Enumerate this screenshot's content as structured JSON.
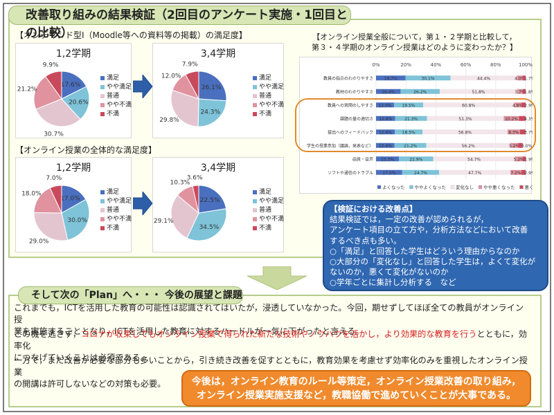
{
  "title": "改善取り組みの結果検証（2回目のアンケート実施・1回目との比較）",
  "section1_label": "【オンデマンド型Ⅰ（Moodle等への資料等の掲載）の満足度】",
  "section2_label": "【オンライン授業の全体的な満足度】",
  "legend_labels": [
    "満足",
    "やや満足",
    "普通",
    "やや不満",
    "不満"
  ],
  "colors": {
    "manzoku": "#4a6fbf",
    "yaya_manzoku": "#7ec3d8",
    "futsu": "#e3c5cf",
    "yaya_fuman": "#e0929e",
    "fuman": "#c9495c",
    "accent_green": "#d7e6b4",
    "blue_box": "#2f67b1",
    "orange": "#f08a2c"
  },
  "pies": [
    {
      "title": "1,2学期",
      "values": [
        17.6,
        20.6,
        30.7,
        21.2,
        9.9
      ],
      "labels": [
        "17.6%",
        "20.6%",
        "30.7%",
        "21.2%",
        "9.9%"
      ]
    },
    {
      "title": "3,4学期",
      "values": [
        26.1,
        24.3,
        29.8,
        12.0,
        7.9
      ],
      "labels": [
        "26.1%",
        "24.3%",
        "29.8%",
        "12.0%",
        "7.9%"
      ]
    },
    {
      "title": "1,2学期",
      "values": [
        17.0,
        30.0,
        29.0,
        18.0,
        7.0
      ],
      "labels": [
        "17.0%",
        "30.0%",
        "29.0%",
        "18.0%",
        "7.0%"
      ]
    },
    {
      "title": "3,4学期",
      "values": [
        22.5,
        34.5,
        29.1,
        10.3,
        3.6
      ],
      "labels": [
        "22.5%",
        "34.5%",
        "29.1%",
        "10.3%",
        "3.6%"
      ]
    }
  ],
  "bar_question_line1": "【オンライン授業全般について，第１・２学期と比較して，",
  "bar_question_line2": "第３・４学期のオンライン授業はどのように変わったか？】",
  "chart_data": {
    "type": "bar",
    "stacked": true,
    "orientation": "horizontal",
    "x_ticks": [
      "0%",
      "20%",
      "40%",
      "60%",
      "80%",
      "100%"
    ],
    "categories": [
      "教員の指示のわかりやすさ",
      "教材のわかりやすさ",
      "教員への質問のしやすさ",
      "課題の量の適切さ",
      "提出へのフィードバック",
      "学生の授業参加（議論，発表など）",
      "画質・音声",
      "ソフトや通信のトラブル"
    ],
    "series": [
      {
        "name": "よくなった",
        "values": [
          19.7,
          16.4,
          12.0,
          12.8,
          12.6,
          12.4,
          15.3,
          17.5
        ],
        "labels": [
          "19.7%",
          "16.4%",
          "12.0%",
          "12.8%",
          "12.6%",
          "12.4%",
          "15.3%",
          "17.5%"
        ]
      },
      {
        "name": "ややよくなった",
        "values": [
          30.1,
          26.2,
          19.5,
          21.3,
          18.5,
          21.2,
          22.9,
          24.7
        ],
        "labels": [
          "30.1%",
          "26.2%",
          "19.5%",
          "21.3%",
          "18.5%",
          "21.2%",
          "22.9%",
          "24.7%"
        ]
      },
      {
        "name": "変化なし",
        "values": [
          44.4,
          51.8,
          60.8,
          51.3,
          56.8,
          56.2,
          54.7,
          47.7
        ],
        "labels": [
          "44.4%",
          "51.8%",
          "60.8%",
          "51.3%",
          "56.8%",
          "56.2%",
          "54.7%",
          "47.7%"
        ]
      },
      {
        "name": "やや悪くなった",
        "values": [
          4.0,
          3.7,
          4.8,
          10.2,
          8.3,
          5.2,
          5.2,
          7.2
        ],
        "labels": [
          "4.0%",
          "3.7%",
          "4.8%",
          "10.2%",
          "8.3%",
          "5.2%",
          "5.2%",
          "7.2%"
        ]
      },
      {
        "name": "悪くなった",
        "values": [
          1.7,
          1.8,
          2.9,
          4.3,
          3.7,
          3.0,
          1.9,
          2.9
        ],
        "labels": [
          "1.7%",
          "1.8%",
          "2.9%",
          "4.3%",
          "3.7%",
          "3.0%",
          "1.9%",
          "2.9%"
        ]
      }
    ],
    "xlim": [
      0,
      100
    ],
    "colors": [
      "#4a6fbf",
      "#7ec3d8",
      "#f3e6ea",
      "#e0929e",
      "#c9495c"
    ]
  },
  "improvement": {
    "heading": "【検証における改善点】",
    "lines": [
      "結果検証では，一定の改善が認められるが，",
      "アンケート項目の立て方や，分析方法などにおいて改善",
      "するべき点も多い。",
      "○「満足」と回答した学生はどういう理由からなのか",
      "○大部分の「変化なし」と回答した学生は，よくて変化が",
      "ないのか，悪くて変化がないのか",
      "○学年ごとに集計し分析する　など"
    ]
  },
  "plan_title": "そして次の「Plan」へ・・・ 今後の展望と課題",
  "paragraphs": {
    "p1_line1": "これまでも，ICTを活用した教育の可能性は認識されてはいたが，浸透していなかった。今回，期せずしてほぼ全ての教員がオンライン授",
    "p1_line2": "業を実施することとなり，ICTを活用した教育に対するハードルが一気に下がったと言える。",
    "p2_pre": "この機を逃さず，",
    "p2_red": "コロナが収束してもオンライン授業で得られた新たな技術やノウハウを活かし，より効果的な教育を行う",
    "p2_post": "とともに，効率化",
    "p2_line2": "につなげていくことは必須である。",
    "p3_line1": "一方で，まだ改善が必要な部分も多いことから，引き続き改善を促すとともに，教育効果を考慮せず効率化のみを重視したオンライン授業",
    "p3_line2": "の開講は許可しないなどの対策も必要。"
  },
  "conclusion_line1": "今後は，オンライン教育のルール等策定，オンライン授業改善の取り組み，",
  "conclusion_line2": "オンライン授業実施支援など，教職協働で進めていくことが大事である。"
}
